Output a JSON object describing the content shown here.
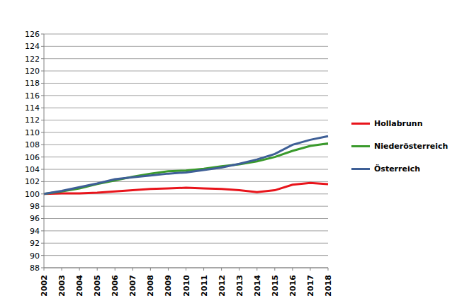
{
  "chart_data": {
    "type": "line",
    "categories": [
      "2002",
      "2003",
      "2004",
      "2005",
      "2006",
      "2007",
      "2008",
      "2009",
      "2010",
      "2011",
      "2012",
      "2013",
      "2014",
      "2015",
      "2016",
      "2017",
      "2018"
    ],
    "series": [
      {
        "name": "Hollabrunn",
        "color": "#e8141b",
        "values": [
          100,
          100.1,
          100.1,
          100.2,
          100.4,
          100.6,
          100.8,
          100.9,
          101.0,
          100.9,
          100.8,
          100.6,
          100.3,
          100.6,
          101.5,
          101.8,
          101.6
        ]
      },
      {
        "name": "Niederösterreich",
        "color": "#3a9a2c",
        "values": [
          100,
          100.4,
          100.9,
          101.6,
          102.2,
          102.8,
          103.3,
          103.7,
          103.8,
          104.1,
          104.5,
          104.8,
          105.3,
          106.0,
          107.0,
          107.8,
          108.2
        ]
      },
      {
        "name": "Österreich",
        "color": "#3e5f96",
        "values": [
          100,
          100.5,
          101.1,
          101.7,
          102.4,
          102.7,
          103.0,
          103.3,
          103.5,
          103.9,
          104.3,
          104.9,
          105.6,
          106.5,
          108.0,
          108.8,
          109.4
        ]
      }
    ],
    "ylim": [
      88,
      126
    ],
    "yticks": [
      88,
      90,
      92,
      94,
      96,
      98,
      100,
      102,
      104,
      106,
      108,
      110,
      112,
      114,
      116,
      118,
      120,
      122,
      124,
      126
    ],
    "grid": true,
    "legend": "right"
  }
}
